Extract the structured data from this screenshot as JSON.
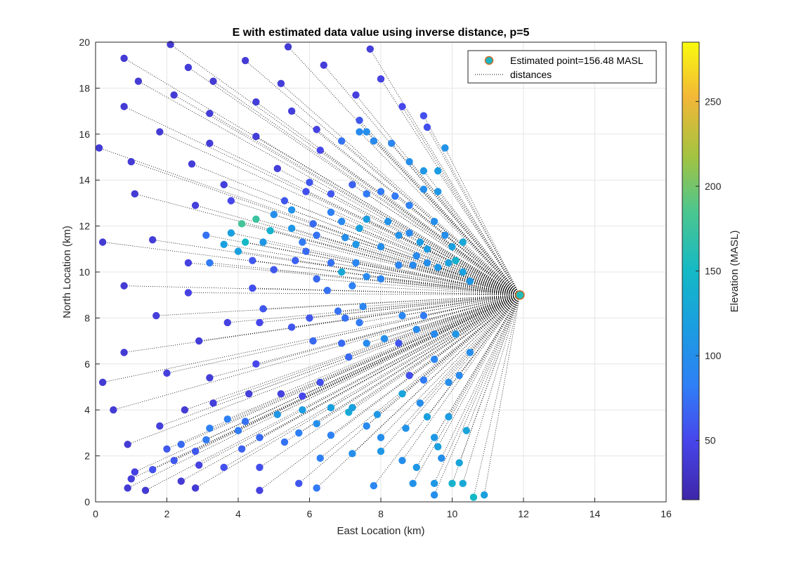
{
  "chart_data": {
    "type": "scatter",
    "title": "E with estimated data value using inverse distance, p=5",
    "xlabel": "East Location (km)",
    "ylabel": "North Location (km)",
    "colorbar_label": "Elevation (MASL)",
    "xlim": [
      0,
      16
    ],
    "ylim": [
      0,
      20
    ],
    "xticks": [
      "0",
      "2",
      "4",
      "6",
      "8",
      "10",
      "12",
      "14",
      "16"
    ],
    "yticks": [
      "0",
      "2",
      "4",
      "6",
      "8",
      "10",
      "12",
      "14",
      "16",
      "18",
      "20"
    ],
    "clim": [
      15,
      285
    ],
    "cticks": [
      "50",
      "100",
      "150",
      "200",
      "250"
    ],
    "colormap": "parula",
    "grid": true,
    "legend_position": "top-right",
    "legend": [
      "Estimated point=156.48 MASL",
      "distances"
    ],
    "estimated_point": {
      "x": 11.9,
      "y": 9.0,
      "value": 156.48
    },
    "points": [
      [
        0.8,
        19.3,
        38
      ],
      [
        1.2,
        18.3,
        38
      ],
      [
        2.1,
        19.9,
        38
      ],
      [
        2.6,
        18.9,
        40
      ],
      [
        3.3,
        18.3,
        38
      ],
      [
        4.2,
        19.2,
        38
      ],
      [
        5.4,
        19.8,
        38
      ],
      [
        5.2,
        18.2,
        40
      ],
      [
        6.4,
        19.0,
        40
      ],
      [
        7.3,
        17.7,
        42
      ],
      [
        7.7,
        19.7,
        42
      ],
      [
        8.0,
        18.4,
        45
      ],
      [
        0.8,
        17.2,
        38
      ],
      [
        2.2,
        17.7,
        38
      ],
      [
        3.2,
        16.9,
        40
      ],
      [
        4.5,
        17.4,
        40
      ],
      [
        5.5,
        17.0,
        42
      ],
      [
        1.8,
        16.1,
        38
      ],
      [
        0.1,
        15.4,
        38
      ],
      [
        1.0,
        14.8,
        38
      ],
      [
        3.2,
        15.6,
        40
      ],
      [
        4.5,
        15.9,
        40
      ],
      [
        6.2,
        16.2,
        45
      ],
      [
        7.4,
        16.6,
        60
      ],
      [
        8.6,
        17.2,
        50
      ],
      [
        9.2,
        16.8,
        55
      ],
      [
        9.3,
        16.3,
        55
      ],
      [
        1.1,
        13.4,
        38
      ],
      [
        2.7,
        14.7,
        40
      ],
      [
        3.6,
        13.8,
        42
      ],
      [
        5.1,
        14.5,
        42
      ],
      [
        6.3,
        15.3,
        50
      ],
      [
        6.9,
        15.7,
        75
      ],
      [
        7.4,
        16.1,
        95
      ],
      [
        7.6,
        16.1,
        100
      ],
      [
        7.8,
        15.7,
        95
      ],
      [
        8.3,
        15.6,
        90
      ],
      [
        8.8,
        14.8,
        100
      ],
      [
        9.2,
        14.4,
        110
      ],
      [
        9.6,
        14.4,
        115
      ],
      [
        9.8,
        15.4,
        105
      ],
      [
        0.2,
        11.3,
        38
      ],
      [
        2.8,
        12.9,
        42
      ],
      [
        3.8,
        13.1,
        50
      ],
      [
        5.3,
        13.1,
        60
      ],
      [
        5.9,
        13.5,
        55
      ],
      [
        6.0,
        13.9,
        60
      ],
      [
        6.6,
        13.4,
        60
      ],
      [
        7.2,
        13.8,
        65
      ],
      [
        7.6,
        13.4,
        80
      ],
      [
        8.0,
        13.5,
        80
      ],
      [
        8.4,
        13.3,
        80
      ],
      [
        8.8,
        12.9,
        85
      ],
      [
        9.2,
        13.6,
        100
      ],
      [
        9.6,
        13.5,
        110
      ],
      [
        1.6,
        11.4,
        40
      ],
      [
        2.6,
        10.4,
        45
      ],
      [
        3.1,
        11.6,
        75
      ],
      [
        3.2,
        10.4,
        80
      ],
      [
        3.6,
        11.2,
        120
      ],
      [
        3.8,
        11.7,
        120
      ],
      [
        4.0,
        10.9,
        120
      ],
      [
        4.2,
        11.3,
        150
      ],
      [
        4.1,
        12.1,
        180
      ],
      [
        4.5,
        12.3,
        175
      ],
      [
        4.7,
        11.3,
        110
      ],
      [
        4.9,
        11.8,
        140
      ],
      [
        5.0,
        12.5,
        100
      ],
      [
        5.5,
        11.9,
        110
      ],
      [
        5.5,
        12.7,
        105
      ],
      [
        5.8,
        11.3,
        80
      ],
      [
        6.1,
        12.1,
        70
      ],
      [
        6.2,
        11.6,
        75
      ],
      [
        6.6,
        12.6,
        85
      ],
      [
        6.9,
        12.2,
        95
      ],
      [
        7.0,
        11.5,
        100
      ],
      [
        7.3,
        11.2,
        110
      ],
      [
        7.4,
        11.9,
        120
      ],
      [
        7.6,
        12.3,
        115
      ],
      [
        8.0,
        11.1,
        100
      ],
      [
        8.2,
        12.2,
        105
      ],
      [
        8.5,
        11.6,
        105
      ],
      [
        8.8,
        11.7,
        95
      ],
      [
        9.1,
        11.3,
        115
      ],
      [
        9.3,
        11.0,
        115
      ],
      [
        9.5,
        12.2,
        100
      ],
      [
        9.8,
        11.6,
        100
      ],
      [
        10.0,
        11.1,
        120
      ],
      [
        10.3,
        11.3,
        130
      ],
      [
        0.8,
        9.4,
        38
      ],
      [
        2.6,
        9.1,
        45
      ],
      [
        4.4,
        10.5,
        60
      ],
      [
        5.0,
        10.1,
        60
      ],
      [
        5.6,
        10.5,
        65
      ],
      [
        5.9,
        10.9,
        70
      ],
      [
        6.2,
        9.7,
        70
      ],
      [
        6.6,
        10.4,
        75
      ],
      [
        6.5,
        9.2,
        75
      ],
      [
        6.9,
        10.0,
        130
      ],
      [
        7.3,
        10.4,
        90
      ],
      [
        7.2,
        9.4,
        85
      ],
      [
        7.6,
        9.8,
        95
      ],
      [
        8.0,
        9.7,
        90
      ],
      [
        8.5,
        10.3,
        90
      ],
      [
        8.9,
        10.3,
        95
      ],
      [
        9.0,
        10.7,
        95
      ],
      [
        9.3,
        10.4,
        100
      ],
      [
        9.6,
        10.2,
        110
      ],
      [
        9.9,
        10.4,
        120
      ],
      [
        10.1,
        10.5,
        140
      ],
      [
        10.3,
        10.0,
        120
      ],
      [
        10.5,
        9.6,
        110
      ],
      [
        0.8,
        6.5,
        38
      ],
      [
        0.2,
        5.2,
        38
      ],
      [
        0.5,
        4.0,
        38
      ],
      [
        1.7,
        8.1,
        42
      ],
      [
        2.0,
        5.6,
        42
      ],
      [
        2.5,
        4.0,
        38
      ],
      [
        2.9,
        7.0,
        40
      ],
      [
        3.7,
        7.8,
        45
      ],
      [
        3.2,
        5.4,
        40
      ],
      [
        3.3,
        4.3,
        42
      ],
      [
        4.3,
        4.7,
        42
      ],
      [
        4.6,
        7.8,
        50
      ],
      [
        4.5,
        6.0,
        50
      ],
      [
        4.4,
        9.3,
        55
      ],
      [
        4.7,
        8.4,
        60
      ],
      [
        5.2,
        4.7,
        45
      ],
      [
        5.5,
        7.6,
        60
      ],
      [
        5.8,
        4.6,
        50
      ],
      [
        6.0,
        8.0,
        60
      ],
      [
        6.1,
        7.0,
        70
      ],
      [
        6.3,
        5.2,
        55
      ],
      [
        6.8,
        8.3,
        75
      ],
      [
        7.0,
        8.0,
        75
      ],
      [
        6.9,
        6.9,
        70
      ],
      [
        7.1,
        6.3,
        70
      ],
      [
        7.5,
        8.5,
        90
      ],
      [
        7.4,
        7.8,
        80
      ],
      [
        7.6,
        6.9,
        95
      ],
      [
        8.1,
        7.1,
        100
      ],
      [
        8.5,
        6.9,
        60
      ],
      [
        8.6,
        8.1,
        90
      ],
      [
        9.0,
        7.5,
        95
      ],
      [
        9.2,
        8.1,
        80
      ],
      [
        9.5,
        7.3,
        95
      ],
      [
        10.1,
        7.3,
        110
      ],
      [
        8.8,
        5.5,
        55
      ],
      [
        9.2,
        5.3,
        80
      ],
      [
        9.5,
        6.2,
        90
      ],
      [
        9.9,
        5.2,
        100
      ],
      [
        10.2,
        5.5,
        95
      ],
      [
        10.5,
        6.5,
        100
      ],
      [
        0.9,
        2.5,
        38
      ],
      [
        1.0,
        1.0,
        42
      ],
      [
        1.1,
        1.3,
        45
      ],
      [
        1.6,
        1.4,
        55
      ],
      [
        1.8,
        3.3,
        42
      ],
      [
        2.0,
        2.3,
        60
      ],
      [
        2.2,
        1.8,
        60
      ],
      [
        2.4,
        2.5,
        70
      ],
      [
        2.8,
        2.2,
        60
      ],
      [
        2.9,
        1.6,
        45
      ],
      [
        3.1,
        2.7,
        80
      ],
      [
        3.2,
        3.2,
        85
      ],
      [
        3.6,
        1.5,
        55
      ],
      [
        3.7,
        3.6,
        85
      ],
      [
        4.0,
        3.1,
        80
      ],
      [
        4.2,
        3.5,
        75
      ],
      [
        4.1,
        2.3,
        65
      ],
      [
        4.6,
        2.8,
        70
      ],
      [
        4.6,
        1.5,
        55
      ],
      [
        5.1,
        3.8,
        110
      ],
      [
        5.3,
        2.6,
        75
      ],
      [
        5.7,
        3.0,
        85
      ],
      [
        5.8,
        4.0,
        115
      ],
      [
        6.2,
        3.4,
        100
      ],
      [
        6.3,
        1.9,
        85
      ],
      [
        6.6,
        2.9,
        85
      ],
      [
        6.6,
        4.1,
        120
      ],
      [
        7.1,
        3.9,
        130
      ],
      [
        7.2,
        4.1,
        120
      ],
      [
        7.2,
        2.1,
        100
      ],
      [
        7.6,
        3.3,
        95
      ],
      [
        7.9,
        3.8,
        110
      ],
      [
        8.0,
        2.8,
        100
      ],
      [
        8.0,
        2.2,
        110
      ],
      [
        8.6,
        1.8,
        100
      ],
      [
        8.6,
        4.7,
        125
      ],
      [
        8.7,
        3.2,
        105
      ],
      [
        9.0,
        1.5,
        110
      ],
      [
        9.1,
        4.3,
        100
      ],
      [
        9.3,
        3.7,
        120
      ],
      [
        9.5,
        2.8,
        110
      ],
      [
        9.6,
        2.4,
        120
      ],
      [
        9.7,
        1.9,
        100
      ],
      [
        9.9,
        3.7,
        115
      ],
      [
        10.2,
        1.7,
        125
      ],
      [
        10.4,
        3.1,
        125
      ],
      [
        0.9,
        0.6,
        38
      ],
      [
        1.4,
        0.5,
        38
      ],
      [
        2.4,
        0.9,
        38
      ],
      [
        2.8,
        0.6,
        38
      ],
      [
        4.6,
        0.5,
        45
      ],
      [
        5.7,
        0.8,
        60
      ],
      [
        6.2,
        0.6,
        80
      ],
      [
        7.8,
        0.7,
        90
      ],
      [
        8.9,
        0.8,
        105
      ],
      [
        9.5,
        0.8,
        110
      ],
      [
        9.5,
        0.3,
        100
      ],
      [
        10.0,
        0.8,
        140
      ],
      [
        10.3,
        0.8,
        130
      ],
      [
        10.6,
        0.2,
        150
      ],
      [
        10.9,
        0.3,
        120
      ]
    ]
  }
}
